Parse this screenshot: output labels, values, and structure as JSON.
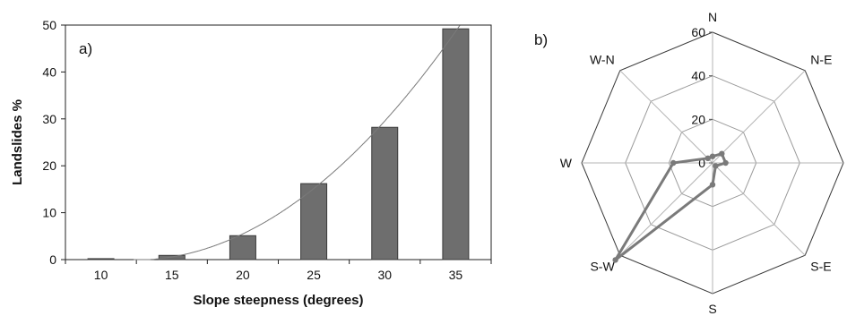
{
  "chart_data": [
    {
      "type": "bar",
      "panel_label": "a)",
      "categories": [
        "10",
        "15",
        "20",
        "25",
        "30",
        "35"
      ],
      "values": [
        0.2,
        0.9,
        5.1,
        16.2,
        28.2,
        49.2
      ],
      "xlabel": "Slope steepness (degrees)",
      "ylabel": "Landslides %",
      "ylim": [
        0,
        50
      ],
      "yticks": [
        "0",
        "10",
        "20",
        "30",
        "40",
        "50"
      ],
      "trendline": {
        "type": "polynomial",
        "color": "#7a7a7a"
      },
      "bar_color": "#6e6e6e",
      "grid": false
    },
    {
      "type": "radar",
      "panel_label": "b)",
      "directions": [
        "N",
        "N-E",
        "E",
        "S-E",
        "S",
        "S-W",
        "W",
        "W-N"
      ],
      "values": [
        3,
        6,
        6,
        2,
        10,
        63,
        18,
        3
      ],
      "rlim": [
        0,
        60
      ],
      "rticks": [
        "0",
        "20",
        "40",
        "60"
      ],
      "series_color": "#7a7a7a",
      "grid": true
    }
  ]
}
